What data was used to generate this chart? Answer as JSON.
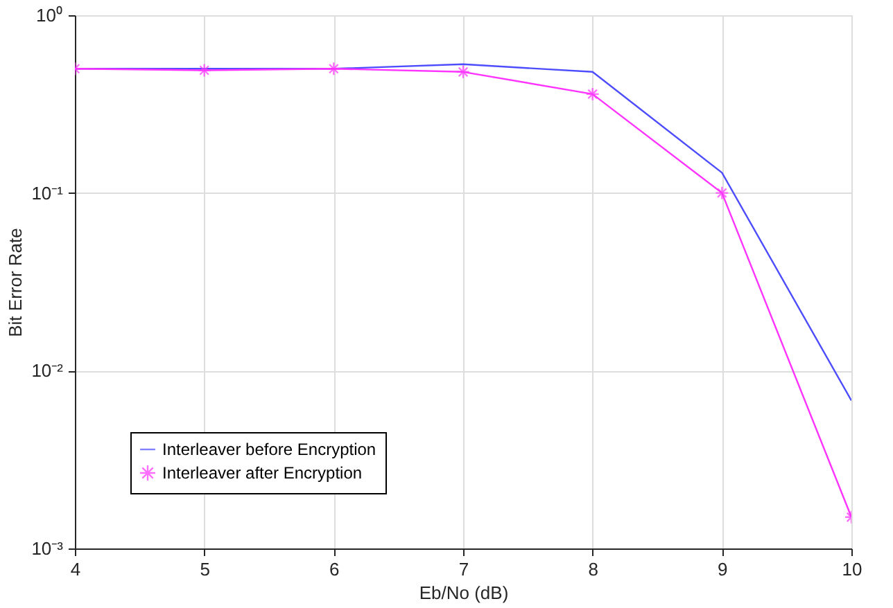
{
  "chart_data": {
    "type": "line",
    "xlabel": "Eb/No (dB)",
    "ylabel": "Bit Error Rate",
    "x": [
      4,
      5,
      6,
      7,
      8,
      9,
      10
    ],
    "series": [
      {
        "name": "Interleaver before Encryption",
        "color": "#4d4dff",
        "marker": "none",
        "values": [
          0.5,
          0.5,
          0.5,
          0.53,
          0.48,
          0.13,
          0.0068
        ]
      },
      {
        "name": "Interleaver after Encryption",
        "color": "#ff33ff",
        "marker": "cross",
        "values": [
          0.5,
          0.49,
          0.5,
          0.48,
          0.36,
          0.1,
          0.0015
        ]
      }
    ],
    "log": "y",
    "xlim": [
      4,
      10
    ],
    "ylim": [
      0.001,
      1
    ],
    "xticks": [
      4,
      5,
      6,
      7,
      8,
      9,
      10
    ],
    "yticks": [
      {
        "value": 0.001,
        "label": "10⁻³"
      },
      {
        "value": 0.01,
        "label": "10⁻²"
      },
      {
        "value": 0.1,
        "label": "10⁻¹"
      },
      {
        "value": 1,
        "label": "10⁰"
      }
    ],
    "grid": true,
    "legend": "bottom left",
    "line_style": "solid"
  }
}
